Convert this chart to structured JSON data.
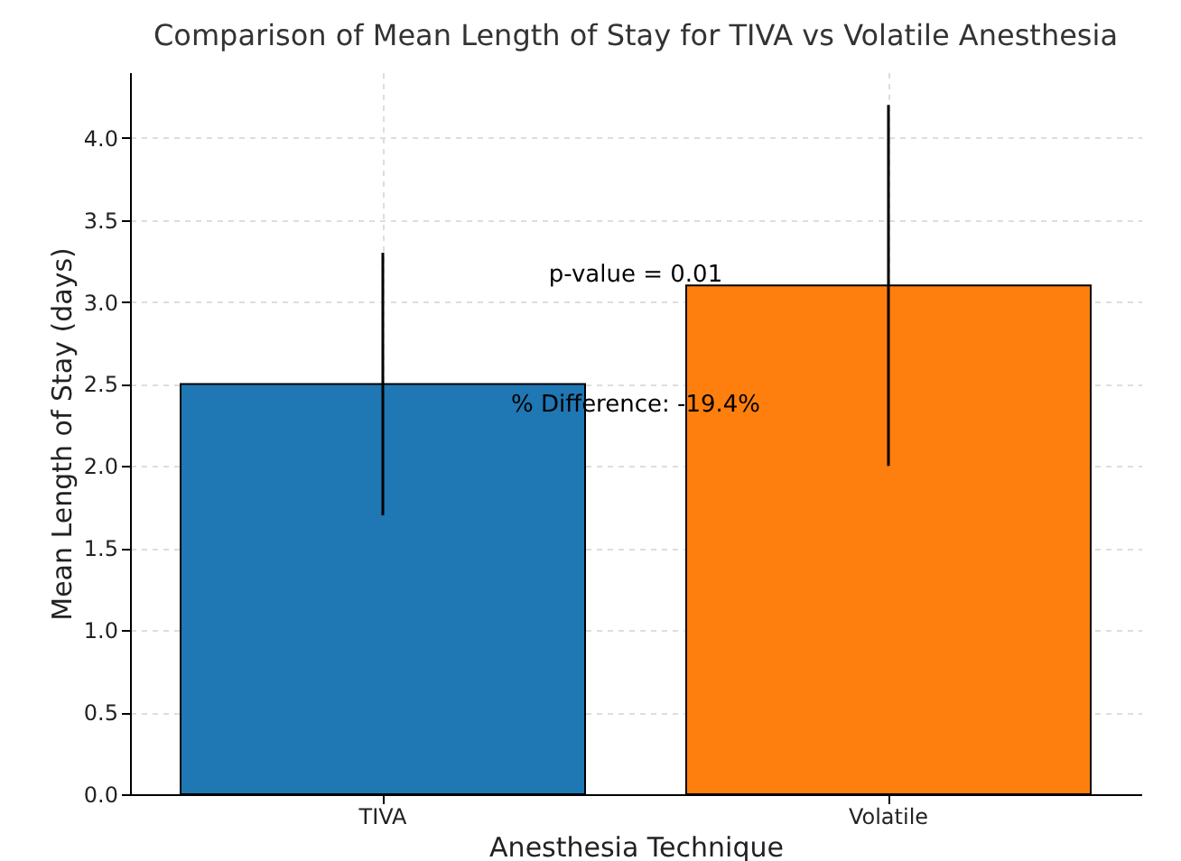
{
  "chart_data": {
    "type": "bar",
    "title": "Comparison of Mean Length of Stay for TIVA vs Volatile Anesthesia",
    "xlabel": "Anesthesia Technique",
    "ylabel": "Mean Length of Stay (days)",
    "categories": [
      "TIVA",
      "Volatile"
    ],
    "values": [
      2.5,
      3.1
    ],
    "colors": [
      "#1f77b4",
      "#ff7f0e"
    ],
    "errors": [
      0.8,
      1.1
    ],
    "ylim": [
      0,
      4.4
    ],
    "yticks": [
      {
        "value": 0,
        "label": "0.0"
      },
      {
        "value": 0.5,
        "label": "0.5"
      },
      {
        "value": 1,
        "label": "1.0"
      },
      {
        "value": 1.5,
        "label": "1.5"
      },
      {
        "value": 2,
        "label": "2.0"
      },
      {
        "value": 2.5,
        "label": "2.5"
      },
      {
        "value": 3,
        "label": "3.0"
      },
      {
        "value": 3.5,
        "label": "3.5"
      },
      {
        "value": 4,
        "label": "4.0"
      }
    ],
    "grid": true,
    "annotations": [
      "p-value = 0.01",
      "% Difference: -19.4%"
    ]
  }
}
